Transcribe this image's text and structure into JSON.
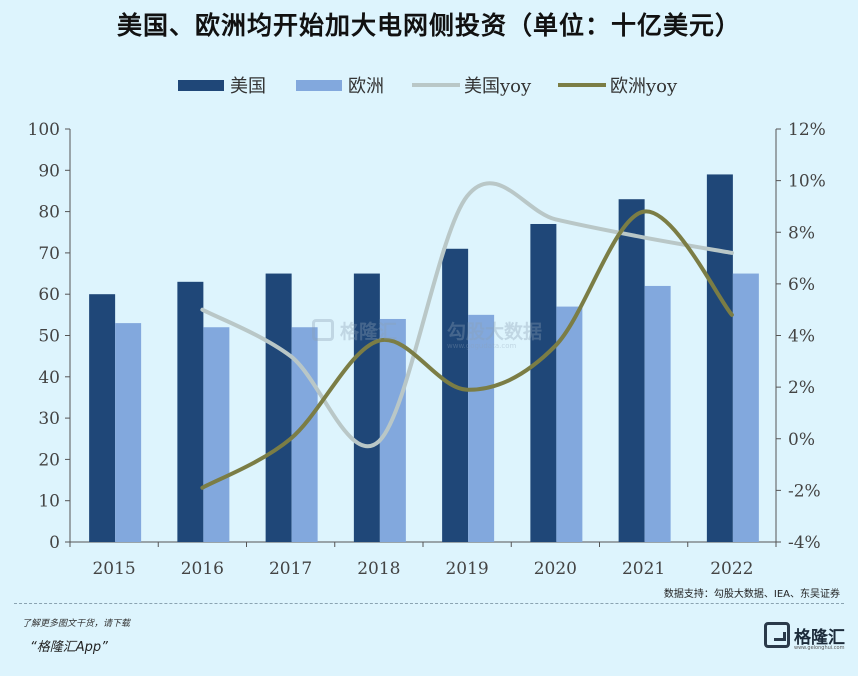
{
  "title": "美国、欧洲均开始加大电网侧投资（单位：十亿美元）",
  "source": "数据支持：勾股大数据、IEA、东吴证券",
  "footer": {
    "promo": "了解更多图文干货，请下载",
    "app": "“格隆汇App”",
    "brand_name": "格隆汇",
    "brand_url": "www.gelonghui.com"
  },
  "watermark": {
    "name": "格隆汇",
    "name2": "勾股大数据",
    "url": "www.gogudata.com"
  },
  "colors": {
    "background": "#ddf4fd",
    "us_bar": "#1f4778",
    "eu_bar": "#82a8dd",
    "us_yoy": "#b9c7c7",
    "eu_yoy": "#7b7d45",
    "axis": "#555555"
  },
  "chart_data": {
    "type": "bar",
    "categories": [
      "2015",
      "2016",
      "2017",
      "2018",
      "2019",
      "2020",
      "2021",
      "2022"
    ],
    "series": [
      {
        "name": "美国",
        "type": "bar",
        "axis": "left",
        "values": [
          60,
          63,
          65,
          65,
          71,
          77,
          83,
          89
        ]
      },
      {
        "name": "欧洲",
        "type": "bar",
        "axis": "left",
        "values": [
          53,
          52,
          52,
          54,
          55,
          57,
          62,
          65
        ]
      },
      {
        "name": "美国yoy",
        "type": "line",
        "axis": "right",
        "values": [
          null,
          5.0,
          3.2,
          -0.1,
          9.4,
          8.5,
          7.8,
          7.2
        ]
      },
      {
        "name": "欧洲yoy",
        "type": "line",
        "axis": "right",
        "values": [
          null,
          -1.9,
          0.0,
          3.8,
          1.9,
          3.6,
          8.8,
          4.8
        ]
      }
    ],
    "y_left": {
      "min": 0,
      "max": 100,
      "ticks": [
        "0",
        "10",
        "20",
        "30",
        "40",
        "50",
        "60",
        "70",
        "80",
        "90",
        "100"
      ]
    },
    "y_right": {
      "min": -4,
      "max": 12,
      "ticks": [
        "-4%",
        "-2%",
        "0%",
        "2%",
        "4%",
        "6%",
        "8%",
        "10%",
        "12%"
      ]
    },
    "legend": "top",
    "grid": false
  }
}
